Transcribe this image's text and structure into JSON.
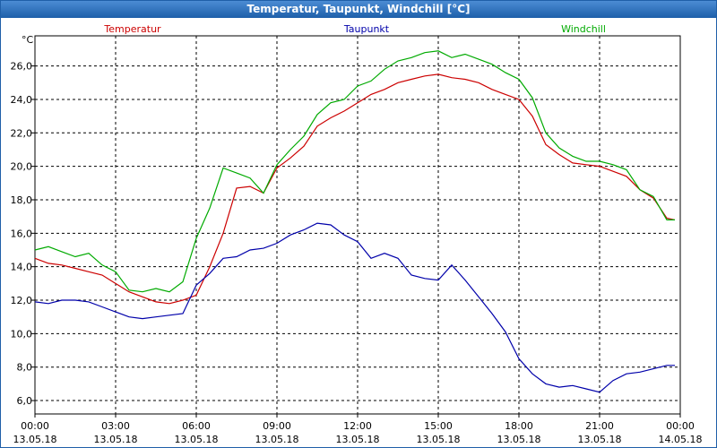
{
  "window": {
    "title": "Temperatur, Taupunkt, Windchill [°C]"
  },
  "chart_data": {
    "type": "line",
    "title": "Temperatur, Taupunkt, Windchill [°C]",
    "ylabel": "°C",
    "xlabel": "",
    "ylim": [
      5.2,
      27.8
    ],
    "xlim": [
      0,
      24
    ],
    "grid": true,
    "yticks": [
      6,
      8,
      10,
      12,
      14,
      16,
      18,
      20,
      22,
      24,
      26
    ],
    "ytick_labels": [
      "6,0",
      "8,0",
      "10,0",
      "12,0",
      "14,0",
      "16,0",
      "18,0",
      "20,0",
      "22,0",
      "24,0",
      "26,0"
    ],
    "xticks": [
      {
        "x": 0,
        "time": "00:00",
        "date": "13.05.18"
      },
      {
        "x": 3,
        "time": "03:00",
        "date": "13.05.18"
      },
      {
        "x": 6,
        "time": "06:00",
        "date": "13.05.18"
      },
      {
        "x": 9,
        "time": "09:00",
        "date": "13.05.18"
      },
      {
        "x": 12,
        "time": "12:00",
        "date": "13.05.18"
      },
      {
        "x": 15,
        "time": "15:00",
        "date": "13.05.18"
      },
      {
        "x": 18,
        "time": "18:00",
        "date": "13.05.18"
      },
      {
        "x": 21,
        "time": "21:00",
        "date": "13.05.18"
      },
      {
        "x": 24,
        "time": "00:00",
        "date": "14.05.18"
      }
    ],
    "series": [
      {
        "name": "Temperatur",
        "color": "#cc0000",
        "x": [
          0,
          0.5,
          1.0,
          1.5,
          2.0,
          2.5,
          3.0,
          3.5,
          4.0,
          4.5,
          5.0,
          5.5,
          6.0,
          6.5,
          7.0,
          7.5,
          8.0,
          8.5,
          9.0,
          9.5,
          10.0,
          10.5,
          11.0,
          11.5,
          12.0,
          12.5,
          13.0,
          13.5,
          14.0,
          14.5,
          15.0,
          15.5,
          16.0,
          16.5,
          17.0,
          17.5,
          18.0,
          18.5,
          19.0,
          19.5,
          20.0,
          20.5,
          21.0,
          21.5,
          22.0,
          22.5,
          23.0,
          23.5,
          23.8
        ],
        "values": [
          14.5,
          14.2,
          14.1,
          13.9,
          13.7,
          13.5,
          13.0,
          12.5,
          12.2,
          11.9,
          11.8,
          12.0,
          12.3,
          14.0,
          16.0,
          18.7,
          18.8,
          18.4,
          19.9,
          20.5,
          21.2,
          22.4,
          22.9,
          23.3,
          23.8,
          24.3,
          24.6,
          25.0,
          25.2,
          25.4,
          25.5,
          25.3,
          25.2,
          25.0,
          24.6,
          24.3,
          24.0,
          23.0,
          21.3,
          20.7,
          20.2,
          20.1,
          20.0,
          19.7,
          19.4,
          18.6,
          18.1,
          16.9,
          16.8
        ]
      },
      {
        "name": "Taupunkt",
        "color": "#0000aa",
        "x": [
          0,
          0.5,
          1.0,
          1.5,
          2.0,
          2.5,
          3.0,
          3.5,
          4.0,
          4.5,
          5.0,
          5.5,
          6.0,
          6.5,
          7.0,
          7.5,
          8.0,
          8.5,
          9.0,
          9.5,
          10.0,
          10.5,
          11.0,
          11.5,
          12.0,
          12.5,
          13.0,
          13.5,
          14.0,
          14.5,
          15.0,
          15.5,
          16.0,
          16.5,
          17.0,
          17.5,
          18.0,
          18.5,
          19.0,
          19.5,
          20.0,
          20.5,
          21.0,
          21.5,
          22.0,
          22.5,
          23.0,
          23.5,
          23.8
        ],
        "values": [
          11.9,
          11.8,
          12.0,
          12.0,
          11.9,
          11.6,
          11.3,
          11.0,
          10.9,
          11.0,
          11.1,
          11.2,
          12.9,
          13.6,
          14.5,
          14.6,
          15.0,
          15.1,
          15.4,
          15.9,
          16.2,
          16.6,
          16.5,
          15.9,
          15.5,
          14.5,
          14.8,
          14.5,
          13.5,
          13.3,
          13.2,
          14.1,
          13.2,
          12.2,
          11.2,
          10.1,
          8.5,
          7.6,
          7.0,
          6.8,
          6.9,
          6.7,
          6.5,
          7.2,
          7.6,
          7.7,
          7.9,
          8.1,
          8.1
        ]
      },
      {
        "name": "Windchill",
        "color": "#00aa00",
        "x": [
          0,
          0.5,
          1.0,
          1.5,
          2.0,
          2.5,
          3.0,
          3.5,
          4.0,
          4.5,
          5.0,
          5.5,
          6.0,
          6.5,
          7.0,
          7.5,
          8.0,
          8.5,
          9.0,
          9.5,
          10.0,
          10.5,
          11.0,
          11.5,
          12.0,
          12.5,
          13.0,
          13.5,
          14.0,
          14.5,
          15.0,
          15.5,
          16.0,
          16.5,
          17.0,
          17.5,
          18.0,
          18.5,
          19.0,
          19.5,
          20.0,
          20.5,
          21.0,
          21.5,
          22.0,
          22.5,
          23.0,
          23.5,
          23.8
        ],
        "values": [
          15.0,
          15.2,
          14.9,
          14.6,
          14.8,
          14.1,
          13.7,
          12.6,
          12.5,
          12.7,
          12.5,
          13.1,
          15.7,
          17.5,
          19.9,
          19.6,
          19.3,
          18.4,
          20.1,
          21.0,
          21.8,
          23.1,
          23.8,
          24.0,
          24.8,
          25.1,
          25.8,
          26.3,
          26.5,
          26.8,
          26.9,
          26.5,
          26.7,
          26.4,
          26.1,
          25.6,
          25.2,
          24.1,
          22.0,
          21.1,
          20.6,
          20.3,
          20.3,
          20.1,
          19.8,
          18.6,
          18.2,
          16.8,
          16.8
        ]
      }
    ]
  }
}
